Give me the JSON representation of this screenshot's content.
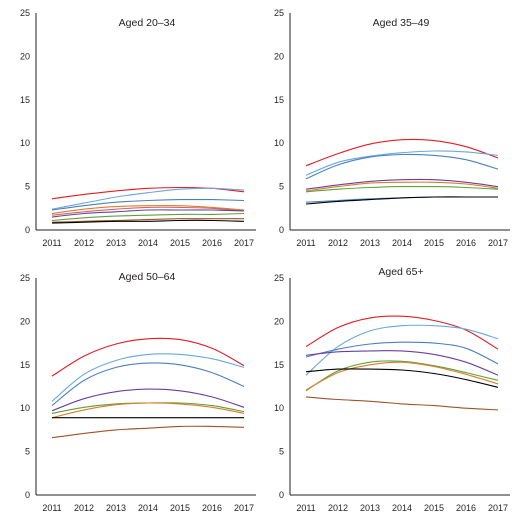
{
  "chart_data": [
    {
      "type": "line",
      "title": "Aged 20–34",
      "x": [
        "2011",
        "2012",
        "2013",
        "2014",
        "2015",
        "2016",
        "2017"
      ],
      "ylim": [
        0,
        25
      ],
      "yticks": [
        "0",
        "5",
        "10",
        "15",
        "20",
        "25"
      ],
      "grid": false,
      "series": [
        {
          "color": "#e31c23",
          "values": [
            3.6,
            4.1,
            4.5,
            4.8,
            4.9,
            4.8,
            4.4
          ]
        },
        {
          "color": "#6ba7dc",
          "values": [
            2.4,
            3.1,
            3.8,
            4.3,
            4.7,
            4.8,
            4.6
          ]
        },
        {
          "color": "#4a7fc1",
          "values": [
            2.3,
            2.8,
            3.2,
            3.4,
            3.5,
            3.5,
            3.4
          ]
        },
        {
          "color": "#e07b2a",
          "values": [
            1.9,
            2.4,
            2.7,
            2.8,
            2.8,
            2.6,
            2.3
          ]
        },
        {
          "color": "#c96a6a",
          "values": [
            1.7,
            2.1,
            2.4,
            2.6,
            2.6,
            2.5,
            2.2
          ]
        },
        {
          "color": "#6b3fa0",
          "values": [
            1.5,
            1.9,
            2.1,
            2.3,
            2.3,
            2.3,
            2.2
          ]
        },
        {
          "color": "#5aa33c",
          "values": [
            1.1,
            1.4,
            1.6,
            1.7,
            1.8,
            1.8,
            1.9
          ]
        },
        {
          "color": "#a0522d",
          "values": [
            0.9,
            1.0,
            1.1,
            1.2,
            1.3,
            1.3,
            1.3
          ]
        },
        {
          "color": "#000000",
          "values": [
            0.8,
            0.9,
            1.0,
            1.0,
            1.1,
            1.1,
            1.0
          ]
        }
      ]
    },
    {
      "type": "line",
      "title": "Aged 35–49",
      "x": [
        "2011",
        "2012",
        "2013",
        "2014",
        "2015",
        "2016",
        "2017"
      ],
      "ylim": [
        0,
        25
      ],
      "yticks": [
        "0",
        "5",
        "10",
        "15",
        "20",
        "25"
      ],
      "grid": false,
      "series": [
        {
          "color": "#e31c23",
          "values": [
            7.4,
            8.8,
            9.9,
            10.4,
            10.3,
            9.6,
            8.3
          ]
        },
        {
          "color": "#6ba7dc",
          "values": [
            6.3,
            7.8,
            8.5,
            8.9,
            9.1,
            9.0,
            8.6
          ]
        },
        {
          "color": "#4a7fc1",
          "values": [
            5.9,
            7.5,
            8.4,
            8.7,
            8.6,
            8.1,
            7.0
          ]
        },
        {
          "color": "#6b3fa0",
          "values": [
            4.7,
            5.2,
            5.6,
            5.8,
            5.8,
            5.5,
            5.0
          ]
        },
        {
          "color": "#e07b2a",
          "values": [
            4.5,
            5.0,
            5.4,
            5.5,
            5.5,
            5.3,
            4.8
          ]
        },
        {
          "color": "#5aa33c",
          "values": [
            4.4,
            4.7,
            4.9,
            5.0,
            5.0,
            4.9,
            4.7
          ]
        },
        {
          "color": "#4a7fc1",
          "values": [
            3.2,
            3.4,
            3.6,
            3.7,
            3.8,
            3.8,
            3.8
          ]
        },
        {
          "color": "#000000",
          "values": [
            3.0,
            3.3,
            3.5,
            3.7,
            3.8,
            3.8,
            3.8
          ]
        }
      ]
    },
    {
      "type": "line",
      "title": "Aged 50–64",
      "x": [
        "2011",
        "2012",
        "2013",
        "2014",
        "2015",
        "2016",
        "2017"
      ],
      "ylim": [
        0,
        25
      ],
      "yticks": [
        "0",
        "5",
        "10",
        "15",
        "20",
        "25"
      ],
      "grid": false,
      "series": [
        {
          "color": "#e31c23",
          "values": [
            13.7,
            16.0,
            17.4,
            18.0,
            17.9,
            16.9,
            14.9
          ]
        },
        {
          "color": "#6ba7dc",
          "values": [
            10.8,
            13.9,
            15.5,
            16.2,
            16.2,
            15.7,
            14.7
          ]
        },
        {
          "color": "#4a7fc1",
          "values": [
            10.3,
            13.2,
            14.7,
            15.2,
            15.0,
            14.1,
            12.5
          ]
        },
        {
          "color": "#6b3fa0",
          "values": [
            9.7,
            11.1,
            11.9,
            12.2,
            12.0,
            11.3,
            10.1
          ]
        },
        {
          "color": "#5aa33c",
          "values": [
            9.4,
            10.1,
            10.5,
            10.6,
            10.6,
            10.3,
            9.6
          ]
        },
        {
          "color": "#e07b2a",
          "values": [
            8.9,
            9.8,
            10.4,
            10.6,
            10.5,
            10.1,
            9.4
          ]
        },
        {
          "color": "#000000",
          "values": [
            8.9,
            8.9,
            8.9,
            8.9,
            8.9,
            8.9,
            8.9
          ]
        },
        {
          "color": "#a0522d",
          "values": [
            6.6,
            7.1,
            7.5,
            7.7,
            7.9,
            7.9,
            7.8
          ]
        }
      ]
    },
    {
      "type": "line",
      "title": "Aged 65+",
      "x": [
        "2011",
        "2012",
        "2013",
        "2014",
        "2015",
        "2016",
        "2017"
      ],
      "ylim": [
        0,
        25
      ],
      "yticks": [
        "0",
        "5",
        "10",
        "15",
        "20",
        "25"
      ],
      "grid": false,
      "series": [
        {
          "color": "#e31c23",
          "values": [
            17.1,
            19.3,
            20.4,
            20.6,
            20.1,
            19.0,
            16.8
          ]
        },
        {
          "color": "#6ba7dc",
          "values": [
            13.8,
            17.1,
            18.9,
            19.5,
            19.5,
            19.1,
            18.0
          ]
        },
        {
          "color": "#4a7fc1",
          "values": [
            15.9,
            16.8,
            17.4,
            17.6,
            17.5,
            16.9,
            15.1
          ]
        },
        {
          "color": "#6b3fa0",
          "values": [
            16.1,
            16.5,
            16.6,
            16.6,
            16.2,
            15.3,
            13.8
          ]
        },
        {
          "color": "#5aa33c",
          "values": [
            12.0,
            14.3,
            15.3,
            15.4,
            14.9,
            14.1,
            13.2
          ]
        },
        {
          "color": "#e07b2a",
          "values": [
            12.1,
            14.1,
            15.0,
            15.3,
            14.8,
            13.9,
            12.8
          ]
        },
        {
          "color": "#000000",
          "values": [
            14.2,
            14.5,
            14.5,
            14.4,
            14.0,
            13.3,
            12.4
          ]
        },
        {
          "color": "#a0522d",
          "values": [
            11.3,
            11.0,
            10.8,
            10.5,
            10.3,
            10.0,
            9.8
          ]
        }
      ]
    }
  ]
}
